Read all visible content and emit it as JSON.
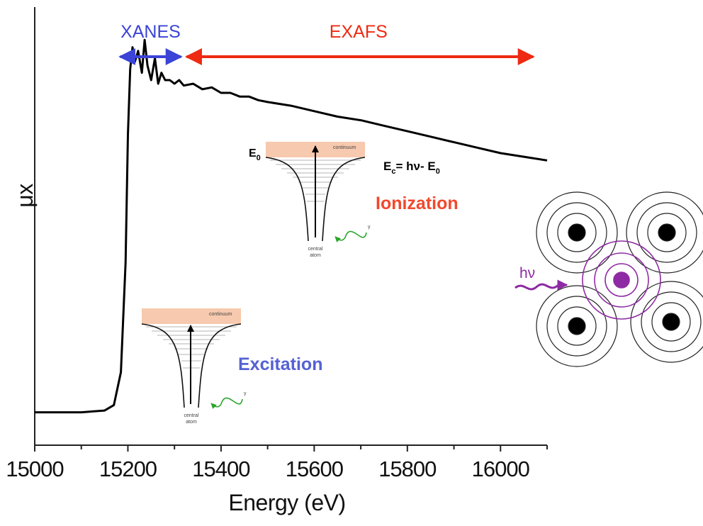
{
  "chart_data": {
    "type": "line",
    "xlabel": "Energy (eV)",
    "ylabel": "μx",
    "xlim": [
      15000,
      16100
    ],
    "ylim": [
      0,
      1.2
    ],
    "xticks": [
      15000,
      15200,
      15400,
      15600,
      15800,
      16000
    ],
    "x_tick_labels": [
      "15000",
      "15200",
      "15400",
      "15600",
      "15800",
      "16000"
    ],
    "series": [
      {
        "x": [
          15000,
          15050,
          15100,
          15150,
          15170,
          15185,
          15195,
          15200,
          15205,
          15210,
          15215,
          15222,
          15230,
          15236,
          15242,
          15250,
          15258,
          15265,
          15272,
          15280,
          15290,
          15300,
          15310,
          15320,
          15340,
          15360,
          15380,
          15400,
          15420,
          15440,
          15460,
          15480,
          15500,
          15550,
          15600,
          15650,
          15700,
          15750,
          15800,
          15850,
          15900,
          15950,
          16000,
          16050,
          16100
        ],
        "y": [
          0.09,
          0.09,
          0.09,
          0.095,
          0.11,
          0.2,
          0.5,
          0.85,
          1.03,
          1.09,
          1.05,
          1.08,
          1.02,
          1.11,
          1.04,
          1.0,
          1.06,
          0.99,
          1.02,
          1.0,
          1.0,
          0.99,
          1.0,
          0.985,
          0.99,
          0.975,
          0.98,
          0.965,
          0.965,
          0.955,
          0.955,
          0.945,
          0.94,
          0.93,
          0.915,
          0.9,
          0.89,
          0.875,
          0.86,
          0.845,
          0.83,
          0.815,
          0.8,
          0.79,
          0.78
        ]
      }
    ],
    "annotations": {
      "xanes": {
        "text": "XANES",
        "color": "#3b44d6",
        "x_range": [
          15220,
          15320
        ]
      },
      "exafs": {
        "text": "EXAFS",
        "color": "#ee2a12",
        "x_range": [
          15320,
          16070
        ]
      },
      "excitation": {
        "text": "Excitation",
        "color": "#5561d4"
      },
      "ionization": {
        "text": "Ionization",
        "color": "#f2482c"
      },
      "e0": {
        "main": "E",
        "sub": "0"
      },
      "ec_equation": {
        "e": "E",
        "sub_c": "c",
        "mid": "= hν- E",
        "sub_0": "0"
      },
      "continuum": "continuum",
      "central_atom": [
        "central",
        "atom"
      ],
      "gamma": "γ",
      "hv": "hν"
    },
    "colors": {
      "curve": "#000000",
      "continuum_band": "#f7c9ae",
      "photon_arrow": "#2aa52a",
      "absorber": "#8e2aa3"
    }
  }
}
